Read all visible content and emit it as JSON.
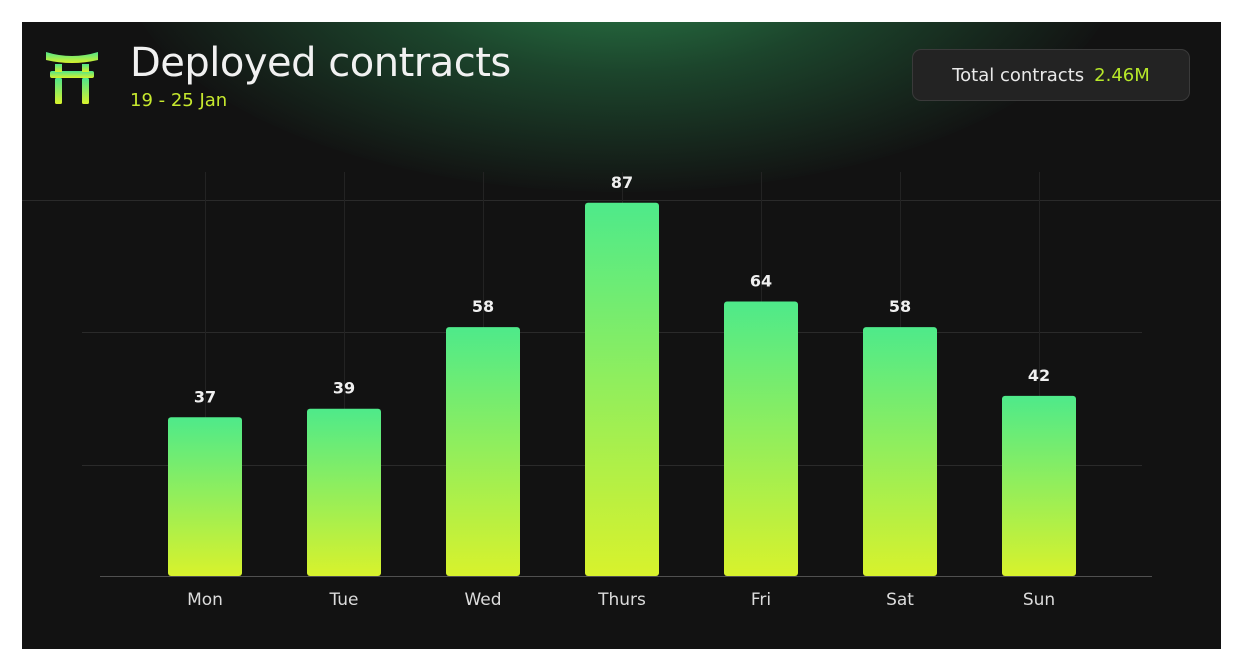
{
  "header": {
    "title": "Deployed contracts",
    "subtitle": "19 - 25 Jan",
    "logo_icon": "torii-gate-icon"
  },
  "summary": {
    "label": "Total contracts",
    "value": "2.46M"
  },
  "colors": {
    "background": "#121212",
    "bar_top": "#4eea8a",
    "bar_bottom": "#d8f22c",
    "accent": "#c6e82e"
  },
  "chart_data": {
    "type": "bar",
    "categories": [
      "Mon",
      "Tue",
      "Wed",
      "Thurs",
      "Fri",
      "Sat",
      "Sun"
    ],
    "values": [
      37,
      39,
      58,
      87,
      64,
      58,
      42
    ],
    "data_labels": [
      "37",
      "39",
      "58",
      "87",
      "64",
      "58",
      "42"
    ],
    "title": "Deployed contracts",
    "subtitle": "19 - 25 Jan",
    "xlabel": "",
    "ylabel": "",
    "ylim": [
      0,
      100
    ],
    "grid": true,
    "legend": "none"
  }
}
